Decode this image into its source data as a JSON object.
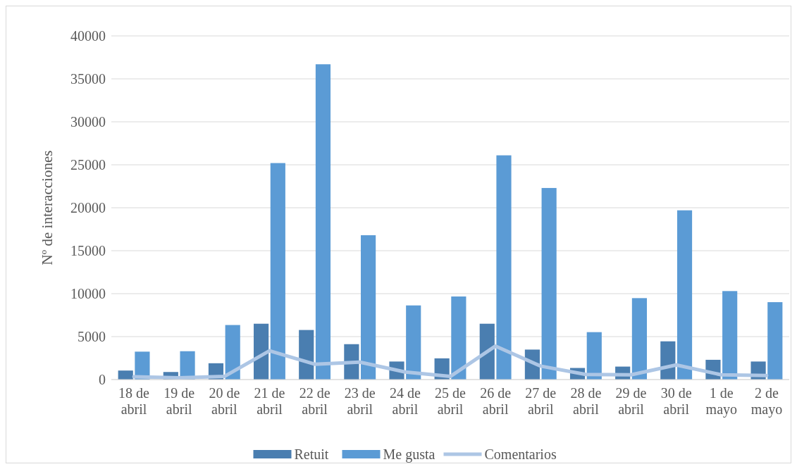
{
  "chart_data": {
    "type": "bar",
    "ylabel": "Nº de interacciones",
    "categories": [
      "18 de abril",
      "19 de abril",
      "20 de abril",
      "21 de abril",
      "22 de abril",
      "23 de abril",
      "24 de abril",
      "25 de abril",
      "26 de abril",
      "27 de abril",
      "28 de abril",
      "29 de abril",
      "30 de abril",
      "1 de mayo",
      "2 de mayo"
    ],
    "series": [
      {
        "name": "Retuit",
        "color": "#4a7eb0",
        "values": [
          1050,
          880,
          1900,
          6500,
          5770,
          4120,
          2100,
          2470,
          6500,
          3490,
          1350,
          1510,
          4450,
          2300,
          2100
        ]
      },
      {
        "name": "Me gusta",
        "color": "#5b9bd5",
        "values": [
          3250,
          3300,
          6350,
          25200,
          36700,
          16800,
          8630,
          9670,
          26100,
          22300,
          5520,
          9480,
          19700,
          10300,
          9010
        ]
      },
      {
        "name": "Comentarios",
        "type": "line",
        "color": "#adc6e5",
        "values": [
          330,
          200,
          360,
          3350,
          1790,
          2030,
          880,
          360,
          3900,
          1570,
          600,
          550,
          1700,
          550,
          470
        ]
      }
    ],
    "ylim": [
      0,
      40000
    ],
    "yticks": [
      0,
      5000,
      10000,
      15000,
      20000,
      25000,
      30000,
      35000,
      40000
    ],
    "grid": "y",
    "legend": "bottom"
  }
}
